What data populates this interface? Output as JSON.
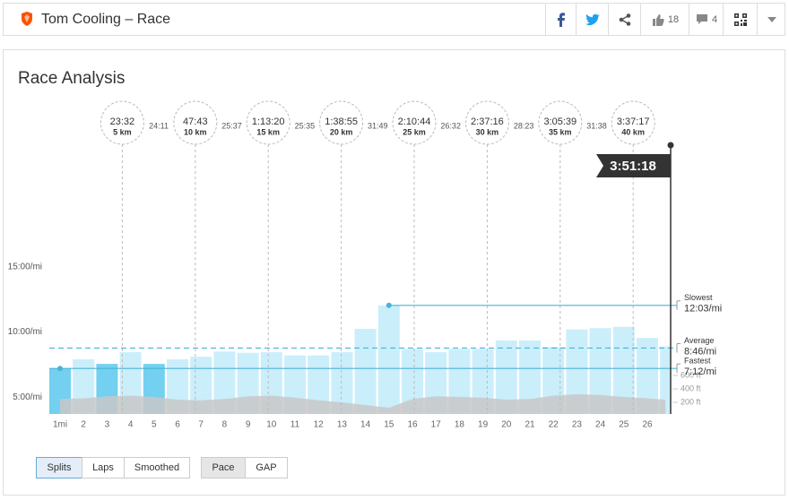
{
  "header": {
    "title": "Tom Cooling – Race",
    "kudos": 18,
    "comments": 4
  },
  "chart_data": {
    "type": "bar",
    "title": "Race Analysis",
    "categories": [
      "1mi",
      "2",
      "3",
      "4",
      "5",
      "6",
      "7",
      "8",
      "9",
      "10",
      "11",
      "12",
      "13",
      "14",
      "15",
      "16",
      "17",
      "18",
      "19",
      "20",
      "21",
      "22",
      "23",
      "24",
      "25",
      "26",
      null
    ],
    "values": [
      7.2,
      7.9,
      7.55,
      8.45,
      7.55,
      7.9,
      8.1,
      8.5,
      8.4,
      8.45,
      8.2,
      8.2,
      8.45,
      10.25,
      12.05,
      8.7,
      8.45,
      8.7,
      8.7,
      9.35,
      9.35,
      8.85,
      10.2,
      10.3,
      10.4,
      9.55,
      8.9
    ],
    "color": "#cbeefb",
    "highlight": [
      0,
      2,
      4
    ],
    "highlight_color": "#73d0f1",
    "ylim": [
      3.7,
      18.65
    ],
    "yticks": [
      {
        "value": 5,
        "label": "5:00/mi"
      },
      {
        "value": 10,
        "label": "10:00/mi"
      },
      {
        "value": 15,
        "label": "15:00/mi"
      }
    ],
    "elevation": {
      "axis": "y2",
      "color": "#c8c8c8",
      "values": [
        250,
        260,
        290,
        300,
        280,
        240,
        230,
        250,
        290,
        300,
        270,
        230,
        200,
        160,
        120,
        250,
        290,
        280,
        270,
        240,
        250,
        300,
        320,
        310,
        280,
        260,
        240
      ]
    },
    "y2lim": [
      27,
      2920
    ],
    "y2ticks": [
      {
        "value": 600,
        "label": "600 ft"
      },
      {
        "value": 400,
        "label": "400 ft"
      },
      {
        "value": 200,
        "label": "200 ft"
      }
    ],
    "reference_lines": [
      {
        "name": "Fastest",
        "value": 7.2,
        "label": "7:12/mi",
        "style": "solid"
      },
      {
        "name": "Average",
        "value": 8.7667,
        "label": "8:46/mi",
        "style": "dashed"
      },
      {
        "name": "Slowest",
        "value": 12.05,
        "label": "12:03/mi",
        "style": "solid"
      }
    ],
    "line_color": "#4ab4d6",
    "splits": [
      {
        "time": "23:32",
        "distance": {
          "value": 5,
          "label": "5 km"
        }
      },
      {
        "time": "47:43",
        "distance": {
          "value": 10,
          "label": "10 km"
        }
      },
      {
        "time": "1:13:20",
        "distance": {
          "value": 15,
          "label": "15 km"
        }
      },
      {
        "time": "1:38:55",
        "distance": {
          "value": 20,
          "label": "20 km"
        }
      },
      {
        "time": "2:10:44",
        "distance": {
          "value": 25,
          "label": "25 km"
        }
      },
      {
        "time": "2:37:16",
        "distance": {
          "value": 30,
          "label": "30 km"
        }
      },
      {
        "time": "3:05:39",
        "distance": {
          "value": 35,
          "label": "35 km"
        }
      },
      {
        "time": "3:37:17",
        "distance": {
          "value": 40,
          "label": "40 km"
        }
      }
    ],
    "split_intervals": [
      "24:11",
      "25:37",
      "25:35",
      "31:49",
      "26:32",
      "28:23",
      "31:38"
    ],
    "finish_time": "3:51:18"
  },
  "controls": {
    "views": [
      "Splits",
      "Laps",
      "Smoothed"
    ],
    "metrics": [
      "Pace",
      "GAP"
    ]
  }
}
